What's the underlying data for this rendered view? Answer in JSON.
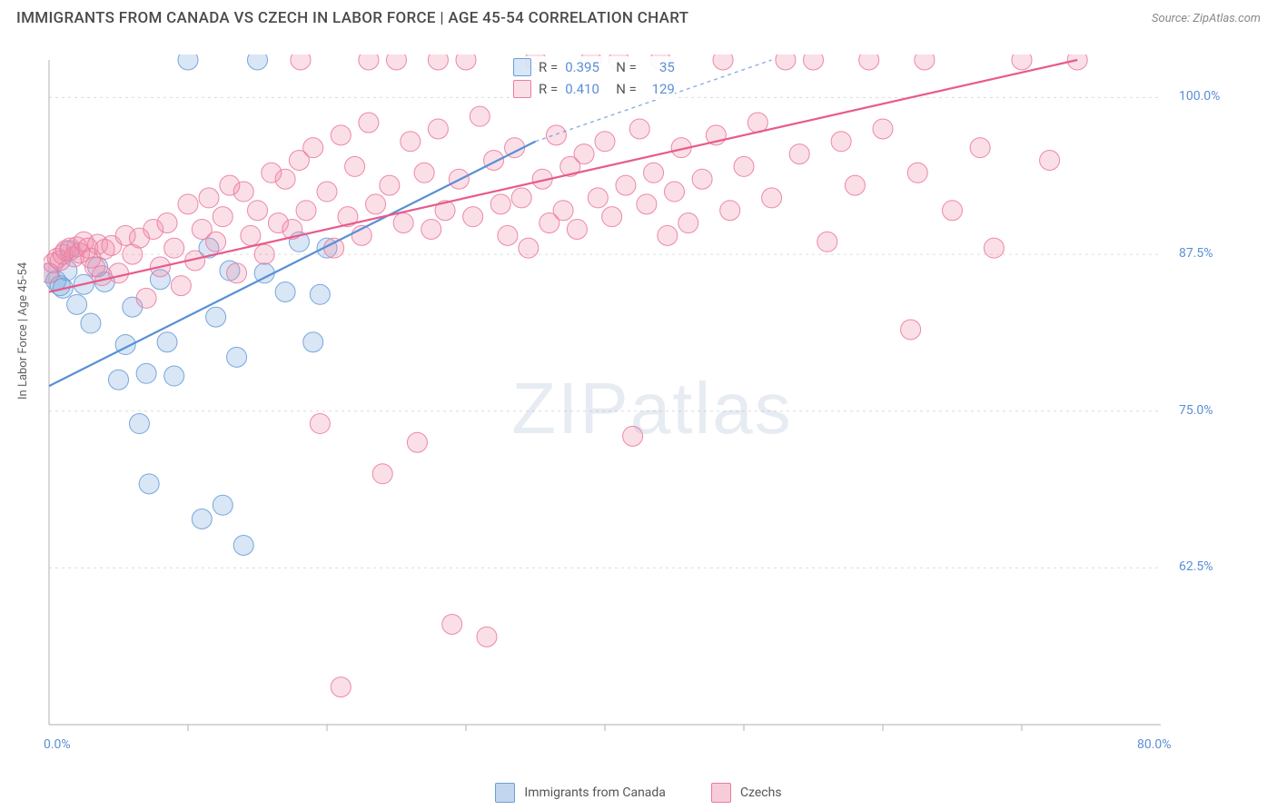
{
  "header": {
    "title": "IMMIGRANTS FROM CANADA VS CZECH IN LABOR FORCE | AGE 45-54 CORRELATION CHART",
    "source": "Source: ZipAtlas.com"
  },
  "chart": {
    "type": "scatter",
    "background_color": "#ffffff",
    "grid_color": "#dcdcdc",
    "axis_color": "#b0b0b0",
    "tick_color": "#b0b0b0",
    "label_color": "#5a8fd6",
    "ylabel": "In Labor Force | Age 45-54",
    "ylabel_fontsize": 13,
    "xlim": [
      0,
      80
    ],
    "ylim": [
      50,
      103
    ],
    "y_ticks": [
      62.5,
      75.0,
      87.5,
      100.0
    ],
    "y_tick_labels": [
      "62.5%",
      "75.0%",
      "87.5%",
      "100.0%"
    ],
    "x_ticks": [
      0,
      80
    ],
    "x_tick_labels": [
      "0.0%",
      "80.0%"
    ],
    "x_minor_ticks": [
      10,
      20,
      30,
      40,
      50,
      60,
      70
    ],
    "marker_radius": 11,
    "marker_opacity": 0.35,
    "marker_stroke_opacity": 0.9,
    "line_width": 2.2,
    "watermark": "ZIPatlas",
    "series": [
      {
        "name": "Immigrants from Canada",
        "color": "#5a8fd6",
        "fill": "rgba(120,165,220,0.28)",
        "stroke": "#6a9fd8",
        "R": "0.395",
        "N": "35",
        "trend": {
          "x1": 0,
          "y1": 77.0,
          "x2": 35,
          "y2": 96.5,
          "dash_ext_x2": 52,
          "dash_ext_y2": 103
        },
        "points": [
          [
            0,
            86
          ],
          [
            0.5,
            85.4
          ],
          [
            0.8,
            85.0
          ],
          [
            1,
            84.8
          ],
          [
            1.3,
            86.2
          ],
          [
            1.5,
            87.8
          ],
          [
            2,
            83.5
          ],
          [
            2.5,
            85.1
          ],
          [
            3,
            82.0
          ],
          [
            3.5,
            86.5
          ],
          [
            4,
            85.3
          ],
          [
            5,
            77.5
          ],
          [
            5.5,
            80.3
          ],
          [
            6,
            83.3
          ],
          [
            6.5,
            74.0
          ],
          [
            7,
            78.0
          ],
          [
            7.2,
            69.2
          ],
          [
            8,
            85.5
          ],
          [
            8.5,
            80.5
          ],
          [
            9,
            77.8
          ],
          [
            10,
            103
          ],
          [
            11,
            66.4
          ],
          [
            11.5,
            88.0
          ],
          [
            12,
            82.5
          ],
          [
            12.5,
            67.5
          ],
          [
            13,
            86.2
          ],
          [
            13.5,
            79.3
          ],
          [
            14,
            64.3
          ],
          [
            15,
            103
          ],
          [
            15.5,
            86.0
          ],
          [
            17,
            84.5
          ],
          [
            18,
            88.5
          ],
          [
            19,
            80.5
          ],
          [
            19.5,
            84.3
          ],
          [
            20,
            88.0
          ]
        ]
      },
      {
        "name": "Czechs",
        "color": "#e85a8a",
        "fill": "rgba(240,140,170,0.28)",
        "stroke": "#ea7ca3",
        "R": "0.410",
        "N": "129",
        "trend": {
          "x1": 0,
          "y1": 84.5,
          "x2": 74,
          "y2": 103
        },
        "points": [
          [
            0,
            86
          ],
          [
            0.3,
            86.8
          ],
          [
            0.6,
            87.2
          ],
          [
            0.8,
            87.0
          ],
          [
            1,
            87.5
          ],
          [
            1.2,
            87.8
          ],
          [
            1.5,
            88.0
          ],
          [
            1.8,
            87.3
          ],
          [
            2,
            88.1
          ],
          [
            2.2,
            87.6
          ],
          [
            2.5,
            88.5
          ],
          [
            2.8,
            88.0
          ],
          [
            3,
            87.2
          ],
          [
            3.3,
            86.5
          ],
          [
            3.5,
            88.3
          ],
          [
            3.8,
            85.8
          ],
          [
            4,
            87.9
          ],
          [
            4.5,
            88.2
          ],
          [
            5,
            86.0
          ],
          [
            5.5,
            89.0
          ],
          [
            6,
            87.5
          ],
          [
            6.5,
            88.8
          ],
          [
            7,
            84.0
          ],
          [
            7.5,
            89.5
          ],
          [
            8,
            86.5
          ],
          [
            8.5,
            90.0
          ],
          [
            9,
            88.0
          ],
          [
            9.5,
            85.0
          ],
          [
            10,
            91.5
          ],
          [
            10.5,
            87.0
          ],
          [
            11,
            89.5
          ],
          [
            11.5,
            92.0
          ],
          [
            12,
            88.5
          ],
          [
            12.5,
            90.5
          ],
          [
            13,
            93.0
          ],
          [
            13.5,
            86.0
          ],
          [
            14,
            92.5
          ],
          [
            14.5,
            89.0
          ],
          [
            15,
            91.0
          ],
          [
            15.5,
            87.5
          ],
          [
            16,
            94.0
          ],
          [
            16.5,
            90.0
          ],
          [
            17,
            93.5
          ],
          [
            17.5,
            89.5
          ],
          [
            18,
            95.0
          ],
          [
            18.1,
            103
          ],
          [
            18.5,
            91.0
          ],
          [
            19,
            96.0
          ],
          [
            19.5,
            74.0
          ],
          [
            20,
            92.5
          ],
          [
            20.5,
            88.0
          ],
          [
            21,
            53.0
          ],
          [
            21,
            97.0
          ],
          [
            21.5,
            90.5
          ],
          [
            22,
            94.5
          ],
          [
            22.5,
            89.0
          ],
          [
            23,
            98.0
          ],
          [
            23,
            103
          ],
          [
            23.5,
            91.5
          ],
          [
            24,
            70.0
          ],
          [
            24.5,
            93.0
          ],
          [
            25,
            103
          ],
          [
            25.5,
            90.0
          ],
          [
            26,
            96.5
          ],
          [
            26.5,
            72.5
          ],
          [
            27,
            94.0
          ],
          [
            27.5,
            89.5
          ],
          [
            28,
            103
          ],
          [
            28,
            97.5
          ],
          [
            28.5,
            91.0
          ],
          [
            29,
            58.0
          ],
          [
            29.5,
            93.5
          ],
          [
            30,
            103
          ],
          [
            30.5,
            90.5
          ],
          [
            31,
            98.5
          ],
          [
            31.5,
            57.0
          ],
          [
            32,
            95.0
          ],
          [
            32.5,
            91.5
          ],
          [
            33,
            89.0
          ],
          [
            33.5,
            96.0
          ],
          [
            34,
            92.0
          ],
          [
            34.5,
            88.0
          ],
          [
            35,
            103
          ],
          [
            35.5,
            93.5
          ],
          [
            36,
            90.0
          ],
          [
            36.5,
            97.0
          ],
          [
            37,
            91.0
          ],
          [
            37.5,
            94.5
          ],
          [
            38,
            89.5
          ],
          [
            38.5,
            95.5
          ],
          [
            39,
            103
          ],
          [
            39.5,
            92.0
          ],
          [
            40,
            96.5
          ],
          [
            40.5,
            90.5
          ],
          [
            41,
            103
          ],
          [
            41.5,
            93.0
          ],
          [
            42,
            73.0
          ],
          [
            42.5,
            97.5
          ],
          [
            43,
            91.5
          ],
          [
            43.5,
            94.0
          ],
          [
            44,
            103
          ],
          [
            44.5,
            89.0
          ],
          [
            45,
            92.5
          ],
          [
            45.5,
            96.0
          ],
          [
            46,
            90.0
          ],
          [
            47,
            93.5
          ],
          [
            48,
            97.0
          ],
          [
            48.5,
            103
          ],
          [
            49,
            91.0
          ],
          [
            50,
            94.5
          ],
          [
            51,
            98.0
          ],
          [
            52,
            92.0
          ],
          [
            53,
            103
          ],
          [
            54,
            95.5
          ],
          [
            55,
            103
          ],
          [
            56,
            88.5
          ],
          [
            57,
            96.5
          ],
          [
            58,
            93.0
          ],
          [
            59,
            103
          ],
          [
            60,
            97.5
          ],
          [
            62,
            81.5
          ],
          [
            62.5,
            94.0
          ],
          [
            63,
            103
          ],
          [
            65,
            91.0
          ],
          [
            67,
            96.0
          ],
          [
            68,
            88.0
          ],
          [
            70,
            103
          ],
          [
            72,
            95.0
          ],
          [
            74,
            103
          ]
        ]
      }
    ]
  },
  "legend": {
    "items": [
      {
        "label": "Immigrants from Canada",
        "fill": "rgba(120,165,220,0.45)",
        "stroke": "#6a9fd8"
      },
      {
        "label": "Czechs",
        "fill": "rgba(240,140,170,0.45)",
        "stroke": "#ea7ca3"
      }
    ]
  }
}
